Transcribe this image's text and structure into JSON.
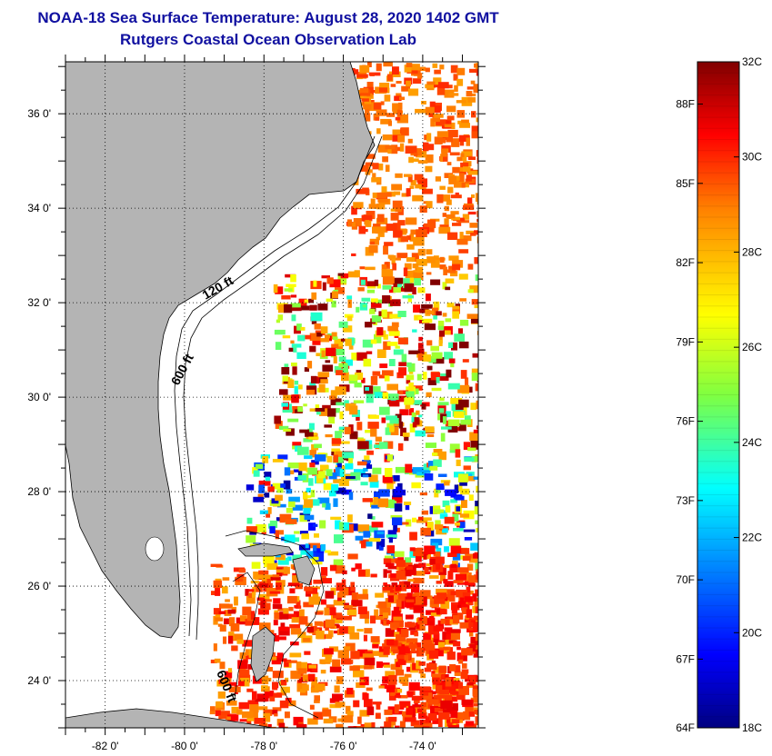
{
  "header": {
    "title": "NOAA-18 Sea Surface Temperature:  August 28, 2020 1402 GMT",
    "subtitle": "Rutgers Coastal Ocean Observation Lab"
  },
  "map": {
    "lat_ticks": [
      {
        "value": 36,
        "label": "36 0'"
      },
      {
        "value": 34,
        "label": "34 0'"
      },
      {
        "value": 32,
        "label": "32 0'"
      },
      {
        "value": 30,
        "label": "30 0'"
      },
      {
        "value": 28,
        "label": "28 0'"
      },
      {
        "value": 26,
        "label": "26 0'"
      },
      {
        "value": 24,
        "label": "24 0'"
      }
    ],
    "lon_ticks": [
      {
        "value": -82,
        "label": "-82 0'"
      },
      {
        "value": -80,
        "label": "-80 0'"
      },
      {
        "value": -78,
        "label": "-78 0'"
      },
      {
        "value": -76,
        "label": "-76 0'"
      },
      {
        "value": -74,
        "label": "-74 0'"
      }
    ],
    "lon_range": [
      -83,
      -72.6
    ],
    "lat_range": [
      23,
      37.1
    ],
    "contour_labels": [
      "120 ft",
      "600 ft",
      "600 ft"
    ],
    "colors": {
      "land": "#b4b4b4",
      "ocean": "#ffffff",
      "title": "#1010a0"
    }
  },
  "colorbar": {
    "celsius_ticks": [
      {
        "value": 32,
        "label": "32C"
      },
      {
        "value": 30,
        "label": "30C"
      },
      {
        "value": 28,
        "label": "28C"
      },
      {
        "value": 26,
        "label": "26C"
      },
      {
        "value": 24,
        "label": "24C"
      },
      {
        "value": 22,
        "label": "22C"
      },
      {
        "value": 20,
        "label": "20C"
      },
      {
        "value": 18,
        "label": "18C"
      }
    ],
    "fahrenheit_ticks": [
      {
        "value": 88,
        "label": "88F"
      },
      {
        "value": 85,
        "label": "85F"
      },
      {
        "value": 82,
        "label": "82F"
      },
      {
        "value": 79,
        "label": "79F"
      },
      {
        "value": 76,
        "label": "76F"
      },
      {
        "value": 73,
        "label": "73F"
      },
      {
        "value": 70,
        "label": "70F"
      },
      {
        "value": 67,
        "label": "67F"
      },
      {
        "value": 64,
        "label": "64F"
      }
    ],
    "range_c": [
      18,
      32
    ]
  }
}
